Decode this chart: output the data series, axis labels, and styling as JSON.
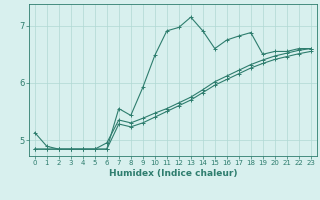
{
  "xlabel": "Humidex (Indice chaleur)",
  "bg_color": "#d8f0ee",
  "grid_color": "#b0d8d4",
  "line_color": "#2e7d6e",
  "xlim": [
    -0.5,
    23.5
  ],
  "ylim": [
    4.72,
    7.38
  ],
  "xticks": [
    0,
    1,
    2,
    3,
    4,
    5,
    6,
    7,
    8,
    9,
    10,
    11,
    12,
    13,
    14,
    15,
    16,
    17,
    18,
    19,
    20,
    21,
    22,
    23
  ],
  "yticks": [
    5,
    6,
    7
  ],
  "line1_x": [
    0,
    1,
    2,
    3,
    4,
    5,
    6,
    7,
    8,
    9,
    10,
    11,
    12,
    13,
    14,
    15,
    16,
    17,
    18,
    19,
    20,
    21,
    22,
    23
  ],
  "line1_y": [
    5.13,
    4.89,
    4.84,
    4.84,
    4.84,
    4.84,
    4.84,
    5.55,
    5.43,
    5.92,
    6.48,
    6.91,
    6.97,
    7.15,
    6.91,
    6.6,
    6.75,
    6.82,
    6.88,
    6.5,
    6.55,
    6.55,
    6.6,
    6.6
  ],
  "line2_x": [
    0,
    1,
    2,
    3,
    4,
    5,
    6,
    7,
    8,
    9,
    10,
    11,
    12,
    13,
    14,
    15,
    16,
    17,
    18,
    19,
    20,
    21,
    22,
    23
  ],
  "line2_y": [
    4.84,
    4.84,
    4.84,
    4.84,
    4.84,
    4.84,
    4.95,
    5.35,
    5.3,
    5.38,
    5.47,
    5.55,
    5.65,
    5.75,
    5.88,
    6.02,
    6.12,
    6.22,
    6.32,
    6.4,
    6.47,
    6.52,
    6.57,
    6.6
  ],
  "line3_x": [
    0,
    1,
    2,
    3,
    4,
    5,
    6,
    7,
    8,
    9,
    10,
    11,
    12,
    13,
    14,
    15,
    16,
    17,
    18,
    19,
    20,
    21,
    22,
    23
  ],
  "line3_y": [
    4.84,
    4.84,
    4.84,
    4.84,
    4.84,
    4.84,
    4.84,
    5.28,
    5.23,
    5.3,
    5.4,
    5.5,
    5.6,
    5.7,
    5.83,
    5.96,
    6.06,
    6.16,
    6.26,
    6.34,
    6.41,
    6.46,
    6.51,
    6.55
  ]
}
